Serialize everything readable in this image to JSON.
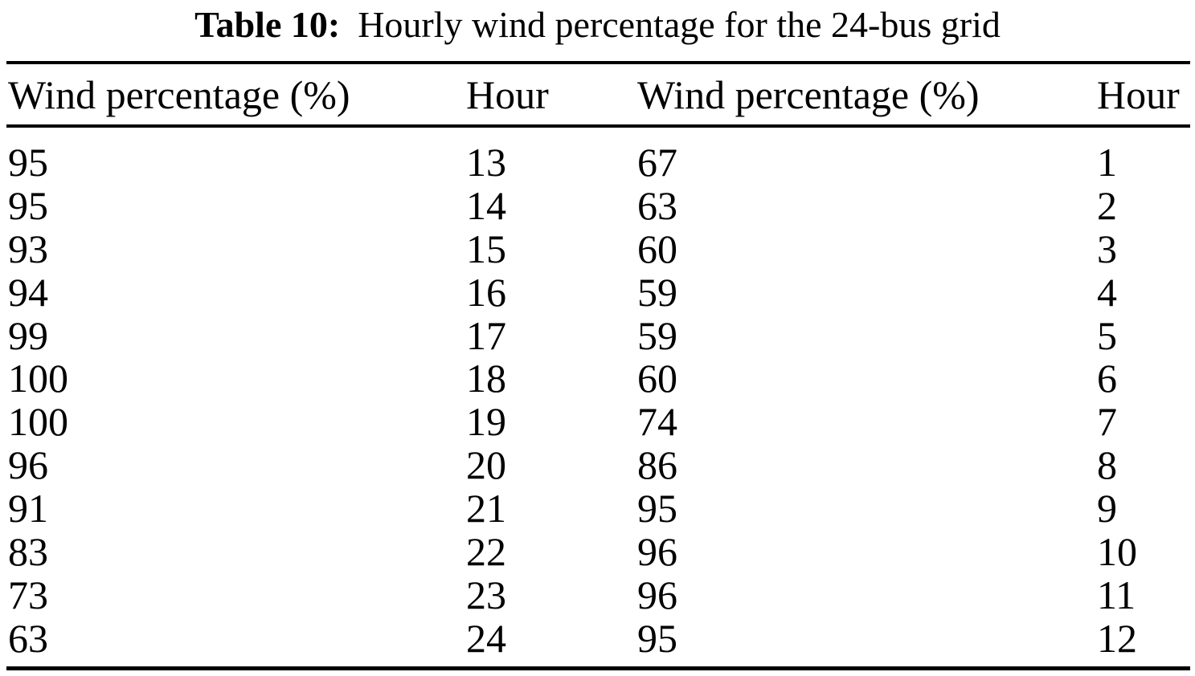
{
  "caption": {
    "label": "Table 10:",
    "text": "Hourly wind percentage for the 24-bus grid"
  },
  "table": {
    "columns": [
      "Wind percentage (%)",
      "Hour",
      "Wind percentage (%)",
      "Hour"
    ],
    "rows": [
      [
        "95",
        "13",
        "67",
        "1"
      ],
      [
        "95",
        "14",
        "63",
        "2"
      ],
      [
        "93",
        "15",
        "60",
        "3"
      ],
      [
        "94",
        "16",
        "59",
        "4"
      ],
      [
        "99",
        "17",
        "59",
        "5"
      ],
      [
        "100",
        "18",
        "60",
        "6"
      ],
      [
        "100",
        "19",
        "74",
        "7"
      ],
      [
        "96",
        "20",
        "86",
        "8"
      ],
      [
        "91",
        "21",
        "95",
        "9"
      ],
      [
        "83",
        "22",
        "96",
        "10"
      ],
      [
        "73",
        "23",
        "96",
        "11"
      ],
      [
        "63",
        "24",
        "95",
        "12"
      ]
    ]
  },
  "colors": {
    "text": "#000000",
    "background": "#ffffff",
    "rule": "#000000"
  }
}
